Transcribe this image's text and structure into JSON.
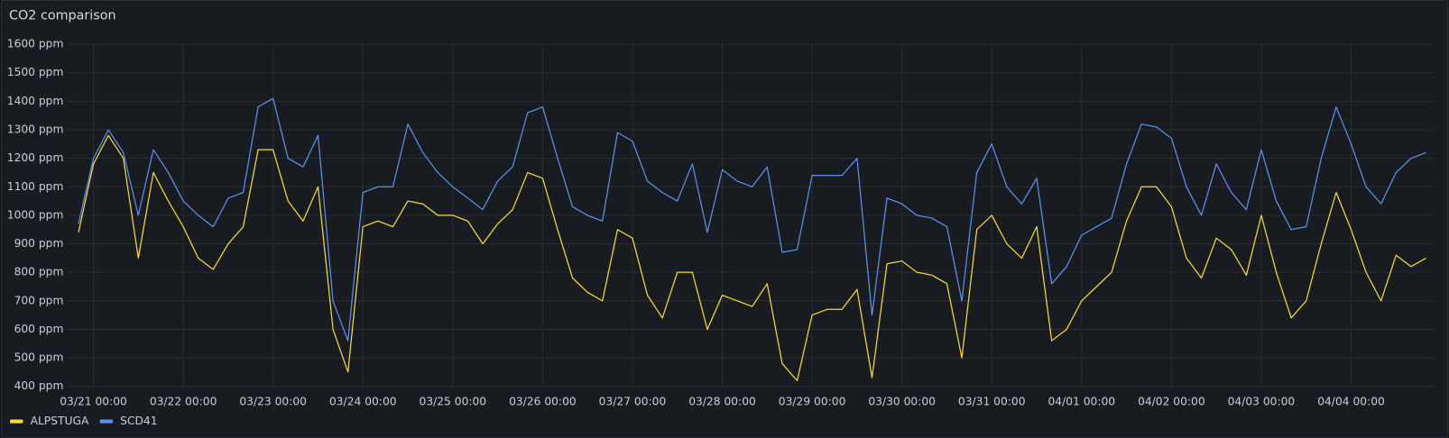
{
  "chart_data": {
    "type": "line",
    "title": "CO2 comparison",
    "x": [
      "03/20 20:00",
      "03/21 00:00",
      "03/21 04:00",
      "03/21 08:00",
      "03/21 12:00",
      "03/21 16:00",
      "03/21 20:00",
      "03/22 00:00",
      "03/22 04:00",
      "03/22 08:00",
      "03/22 12:00",
      "03/22 16:00",
      "03/22 20:00",
      "03/23 00:00",
      "03/23 04:00",
      "03/23 08:00",
      "03/23 12:00",
      "03/23 16:00",
      "03/23 20:00",
      "03/24 00:00",
      "03/24 04:00",
      "03/24 08:00",
      "03/24 12:00",
      "03/24 16:00",
      "03/24 20:00",
      "03/25 00:00",
      "03/25 04:00",
      "03/25 08:00",
      "03/25 12:00",
      "03/25 16:00",
      "03/25 20:00",
      "03/26 00:00",
      "03/26 04:00",
      "03/26 08:00",
      "03/26 12:00",
      "03/26 16:00",
      "03/26 20:00",
      "03/27 00:00",
      "03/27 04:00",
      "03/27 08:00",
      "03/27 12:00",
      "03/27 16:00",
      "03/27 20:00",
      "03/28 00:00",
      "03/28 04:00",
      "03/28 08:00",
      "03/28 12:00",
      "03/28 16:00",
      "03/28 20:00",
      "03/29 00:00",
      "03/29 04:00",
      "03/29 08:00",
      "03/29 12:00",
      "03/29 16:00",
      "03/29 20:00",
      "03/30 00:00",
      "03/30 04:00",
      "03/30 08:00",
      "03/30 12:00",
      "03/30 16:00",
      "03/30 20:00",
      "03/31 00:00",
      "03/31 04:00",
      "03/31 08:00",
      "03/31 12:00",
      "03/31 16:00",
      "03/31 20:00",
      "04/01 00:00",
      "04/01 04:00",
      "04/01 08:00",
      "04/01 12:00",
      "04/01 16:00",
      "04/01 20:00",
      "04/02 00:00",
      "04/02 04:00",
      "04/02 08:00",
      "04/02 12:00",
      "04/02 16:00",
      "04/02 20:00",
      "04/03 00:00",
      "04/03 04:00",
      "04/03 08:00",
      "04/03 12:00",
      "04/03 16:00",
      "04/03 20:00",
      "04/04 00:00",
      "04/04 04:00",
      "04/04 08:00",
      "04/04 12:00",
      "04/04 16:00",
      "04/04 20:00"
    ],
    "series": [
      {
        "name": "ALPSTUGA",
        "color": "#fade2a",
        "values": [
          940,
          1180,
          1280,
          1200,
          850,
          1150,
          1050,
          960,
          850,
          810,
          900,
          960,
          1230,
          1230,
          1050,
          980,
          1100,
          600,
          450,
          960,
          980,
          960,
          1050,
          1040,
          1000,
          1000,
          980,
          900,
          970,
          1020,
          1150,
          1130,
          950,
          780,
          730,
          700,
          950,
          920,
          720,
          640,
          800,
          800,
          600,
          720,
          700,
          680,
          760,
          480,
          420,
          650,
          670,
          670,
          740,
          430,
          830,
          840,
          800,
          790,
          760,
          500,
          950,
          1000,
          900,
          850,
          960,
          560,
          600,
          700,
          750,
          800,
          980,
          1100,
          1100,
          1030,
          850,
          780,
          920,
          880,
          790,
          1000,
          800,
          640,
          700,
          900,
          1080,
          950,
          800,
          700,
          860,
          820,
          850
        ]
      },
      {
        "name": "SCD41",
        "color": "#5794f2",
        "values": [
          970,
          1200,
          1300,
          1220,
          1000,
          1230,
          1150,
          1050,
          1000,
          960,
          1060,
          1080,
          1380,
          1410,
          1200,
          1170,
          1280,
          700,
          560,
          1080,
          1100,
          1100,
          1320,
          1220,
          1150,
          1100,
          1060,
          1020,
          1120,
          1170,
          1360,
          1380,
          1200,
          1030,
          1000,
          980,
          1290,
          1260,
          1120,
          1080,
          1050,
          1180,
          940,
          1160,
          1120,
          1100,
          1170,
          870,
          880,
          1140,
          1140,
          1140,
          1200,
          650,
          1060,
          1040,
          1000,
          990,
          960,
          700,
          1150,
          1250,
          1100,
          1040,
          1130,
          760,
          820,
          930,
          960,
          990,
          1180,
          1320,
          1310,
          1270,
          1100,
          1000,
          1180,
          1080,
          1020,
          1230,
          1050,
          950,
          960,
          1200,
          1380,
          1250,
          1100,
          1040,
          1150,
          1200,
          1220
        ]
      }
    ],
    "xlim": [
      "03/20 17:00",
      "04/04 22:00"
    ],
    "xticks": [
      "03/21 00:00",
      "03/22 00:00",
      "03/23 00:00",
      "03/24 00:00",
      "03/25 00:00",
      "03/26 00:00",
      "03/27 00:00",
      "03/28 00:00",
      "03/29 00:00",
      "03/30 00:00",
      "03/31 00:00",
      "04/01 00:00",
      "04/02 00:00",
      "04/03 00:00",
      "04/04 00:00"
    ],
    "ylim": [
      400,
      1600
    ],
    "yticks": [
      {
        "value": 400,
        "label": "400 ppm"
      },
      {
        "value": 500,
        "label": "500 ppm"
      },
      {
        "value": 600,
        "label": "600 ppm"
      },
      {
        "value": 700,
        "label": "700 ppm"
      },
      {
        "value": 800,
        "label": "800 ppm"
      },
      {
        "value": 900,
        "label": "900 ppm"
      },
      {
        "value": 1000,
        "label": "1000 ppm"
      },
      {
        "value": 1100,
        "label": "1100 ppm"
      },
      {
        "value": 1200,
        "label": "1200 ppm"
      },
      {
        "value": 1300,
        "label": "1300 ppm"
      },
      {
        "value": 1400,
        "label": "1400 ppm"
      },
      {
        "value": 1500,
        "label": "1500 ppm"
      },
      {
        "value": 1600,
        "label": "1600 ppm"
      }
    ],
    "grid": true,
    "legend": "bottom-left"
  }
}
